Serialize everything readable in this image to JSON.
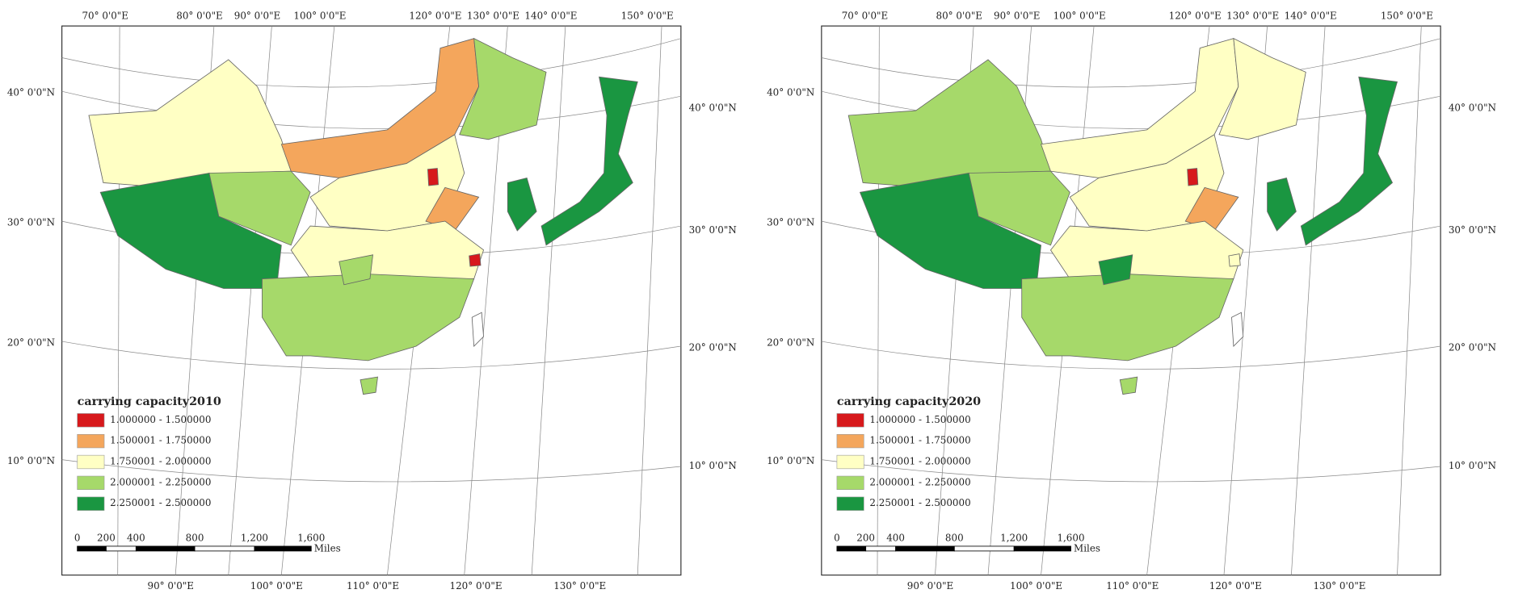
{
  "maps": [
    {
      "legend": {
        "title": "carrying capacity2010",
        "items": [
          {
            "label": "1.000000 - 1.500000",
            "color": "#d7191c"
          },
          {
            "label": "1.500001 - 1.750000",
            "color": "#f4a65c"
          },
          {
            "label": "1.750001 - 2.000000",
            "color": "#ffffc4"
          },
          {
            "label": "2.000001 - 2.250000",
            "color": "#a6d96a"
          },
          {
            "label": "2.250001 - 2.500000",
            "color": "#1a9641"
          }
        ]
      },
      "top_labels": [
        "70° 0'0\"E",
        "80° 0'0\"E",
        "90° 0'0\"E",
        "100° 0'0\"E",
        "120° 0'0\"E",
        "130° 0'0\"E",
        "140° 0'0\"E",
        "150° 0'0\"E"
      ],
      "bottom_labels": [
        "90° 0'0\"E",
        "100° 0'0\"E",
        "110° 0'0\"E",
        "120° 0'0\"E",
        "130° 0'0\"E"
      ],
      "left_labels": [
        "40° 0'0\"N",
        "30° 0'0\"N",
        "20° 0'0\"N",
        "10° 0'0\"N"
      ],
      "right_labels": [
        "40° 0'0\"N",
        "30° 0'0\"N",
        "20° 0'0\"N",
        "10° 0'0\"N"
      ],
      "scale": {
        "ticks": [
          "0",
          "200",
          "400",
          "800",
          "1,200",
          "1,600"
        ],
        "unit": "Miles"
      }
    },
    {
      "legend": {
        "title": "carrying capacity2020",
        "items": [
          {
            "label": "1.000000 - 1.500000",
            "color": "#d7191c"
          },
          {
            "label": "1.500001 - 1.750000",
            "color": "#f4a65c"
          },
          {
            "label": "1.750001 - 2.000000",
            "color": "#ffffc4"
          },
          {
            "label": "2.000001 - 2.250000",
            "color": "#a6d96a"
          },
          {
            "label": "2.250001 - 2.500000",
            "color": "#1a9641"
          }
        ]
      },
      "top_labels": [
        "70° 0'0\"E",
        "80° 0'0\"E",
        "90° 0'0\"E",
        "100° 0'0\"E",
        "120° 0'0\"E",
        "130° 0'0\"E",
        "140° 0'0\"E",
        "150° 0'0\"E"
      ],
      "bottom_labels": [
        "90° 0'0\"E",
        "100° 0'0\"E",
        "110° 0'0\"E",
        "120° 0'0\"E",
        "130° 0'0\"E"
      ],
      "left_labels": [
        "40° 0'0\"N",
        "30° 0'0\"N",
        "20° 0'0\"N",
        "10° 0'0\"N"
      ],
      "right_labels": [
        "40° 0'0\"N",
        "30° 0'0\"N",
        "20° 0'0\"N",
        "10° 0'0\"N"
      ],
      "scale": {
        "ticks": [
          "0",
          "200",
          "400",
          "800",
          "1,200",
          "1,600"
        ],
        "unit": "Miles"
      }
    }
  ]
}
